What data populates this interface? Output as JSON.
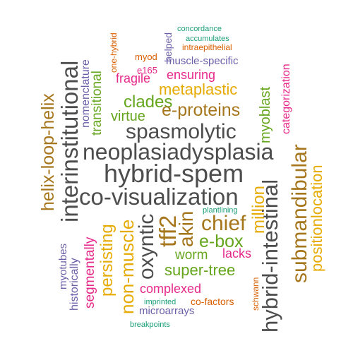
{
  "colors": {
    "gray": "#4d4d4d",
    "orange": "#d95f02",
    "purple": "#6a5fa8",
    "teal": "#1b9e77",
    "magenta": "#e7298a",
    "green": "#66a61e",
    "gold": "#e6ab02",
    "brown": "#a6761d"
  },
  "words": [
    {
      "id": "w1",
      "text": "concordance",
      "color": "teal"
    },
    {
      "id": "w2",
      "text": "one-hybrid",
      "color": "orange"
    },
    {
      "id": "w3",
      "text": "helped",
      "color": "purple"
    },
    {
      "id": "w4",
      "text": "accumulates",
      "color": "teal"
    },
    {
      "id": "w5",
      "text": "intraepithelial",
      "color": "orange"
    },
    {
      "id": "w6",
      "text": "myod",
      "color": "orange"
    },
    {
      "id": "w7",
      "text": "muscle-specific",
      "color": "purple"
    },
    {
      "id": "w8",
      "text": "e165",
      "color": "magenta"
    },
    {
      "id": "w9",
      "text": "nomenclature",
      "color": "purple"
    },
    {
      "id": "w10",
      "text": "categorization",
      "color": "magenta"
    },
    {
      "id": "w11",
      "text": "fragile",
      "color": "magenta"
    },
    {
      "id": "w12",
      "text": "ensuring",
      "color": "magenta"
    },
    {
      "id": "w13",
      "text": "helix-loop-helix",
      "color": "brown"
    },
    {
      "id": "w14",
      "text": "transitional",
      "color": "green"
    },
    {
      "id": "w15",
      "text": "metaplastic",
      "color": "gold"
    },
    {
      "id": "w16",
      "text": "myoblast",
      "color": "green"
    },
    {
      "id": "w17",
      "text": "interinstitutional",
      "color": "gray"
    },
    {
      "id": "w18",
      "text": "clades",
      "color": "green"
    },
    {
      "id": "w19",
      "text": "e-proteins",
      "color": "brown"
    },
    {
      "id": "w20",
      "text": "virtue",
      "color": "green"
    },
    {
      "id": "w21",
      "text": "spasmolytic",
      "color": "gray"
    },
    {
      "id": "w22",
      "text": "neoplasiadysplasia",
      "color": "gray"
    },
    {
      "id": "w23",
      "text": "submandibular",
      "color": "brown"
    },
    {
      "id": "w24",
      "text": "positionlocation",
      "color": "gold"
    },
    {
      "id": "w25",
      "text": "hybrid-spem",
      "color": "gray"
    },
    {
      "id": "w26",
      "text": "million",
      "color": "gold"
    },
    {
      "id": "w27",
      "text": "co-visualization",
      "color": "gray"
    },
    {
      "id": "w28",
      "text": "hybrid-intestinal",
      "color": "gray"
    },
    {
      "id": "w29",
      "text": "plantlining",
      "color": "teal"
    },
    {
      "id": "w30",
      "text": "oxyntic",
      "color": "gray"
    },
    {
      "id": "w31",
      "text": "tff2",
      "color": "brown"
    },
    {
      "id": "w32",
      "text": "akin",
      "color": "brown"
    },
    {
      "id": "w33",
      "text": "chief",
      "color": "brown"
    },
    {
      "id": "w34",
      "text": "e-box",
      "color": "green"
    },
    {
      "id": "w35",
      "text": "myotubes",
      "color": "purple"
    },
    {
      "id": "w36",
      "text": "segmentally",
      "color": "magenta"
    },
    {
      "id": "w37",
      "text": "persisting",
      "color": "gold"
    },
    {
      "id": "w38",
      "text": "non-muscle",
      "color": "gold"
    },
    {
      "id": "w39",
      "text": "worm",
      "color": "green"
    },
    {
      "id": "w40",
      "text": "lacks",
      "color": "magenta"
    },
    {
      "id": "w41",
      "text": "historically",
      "color": "purple"
    },
    {
      "id": "w42",
      "text": "super-tree",
      "color": "green"
    },
    {
      "id": "w43",
      "text": "schwann",
      "color": "orange"
    },
    {
      "id": "w44",
      "text": "complexed",
      "color": "magenta"
    },
    {
      "id": "w45",
      "text": "imprinted",
      "color": "teal"
    },
    {
      "id": "w46",
      "text": "co-factors",
      "color": "orange"
    },
    {
      "id": "w47",
      "text": "microarrays",
      "color": "purple"
    },
    {
      "id": "w48",
      "text": "breakpoints",
      "color": "teal"
    }
  ]
}
